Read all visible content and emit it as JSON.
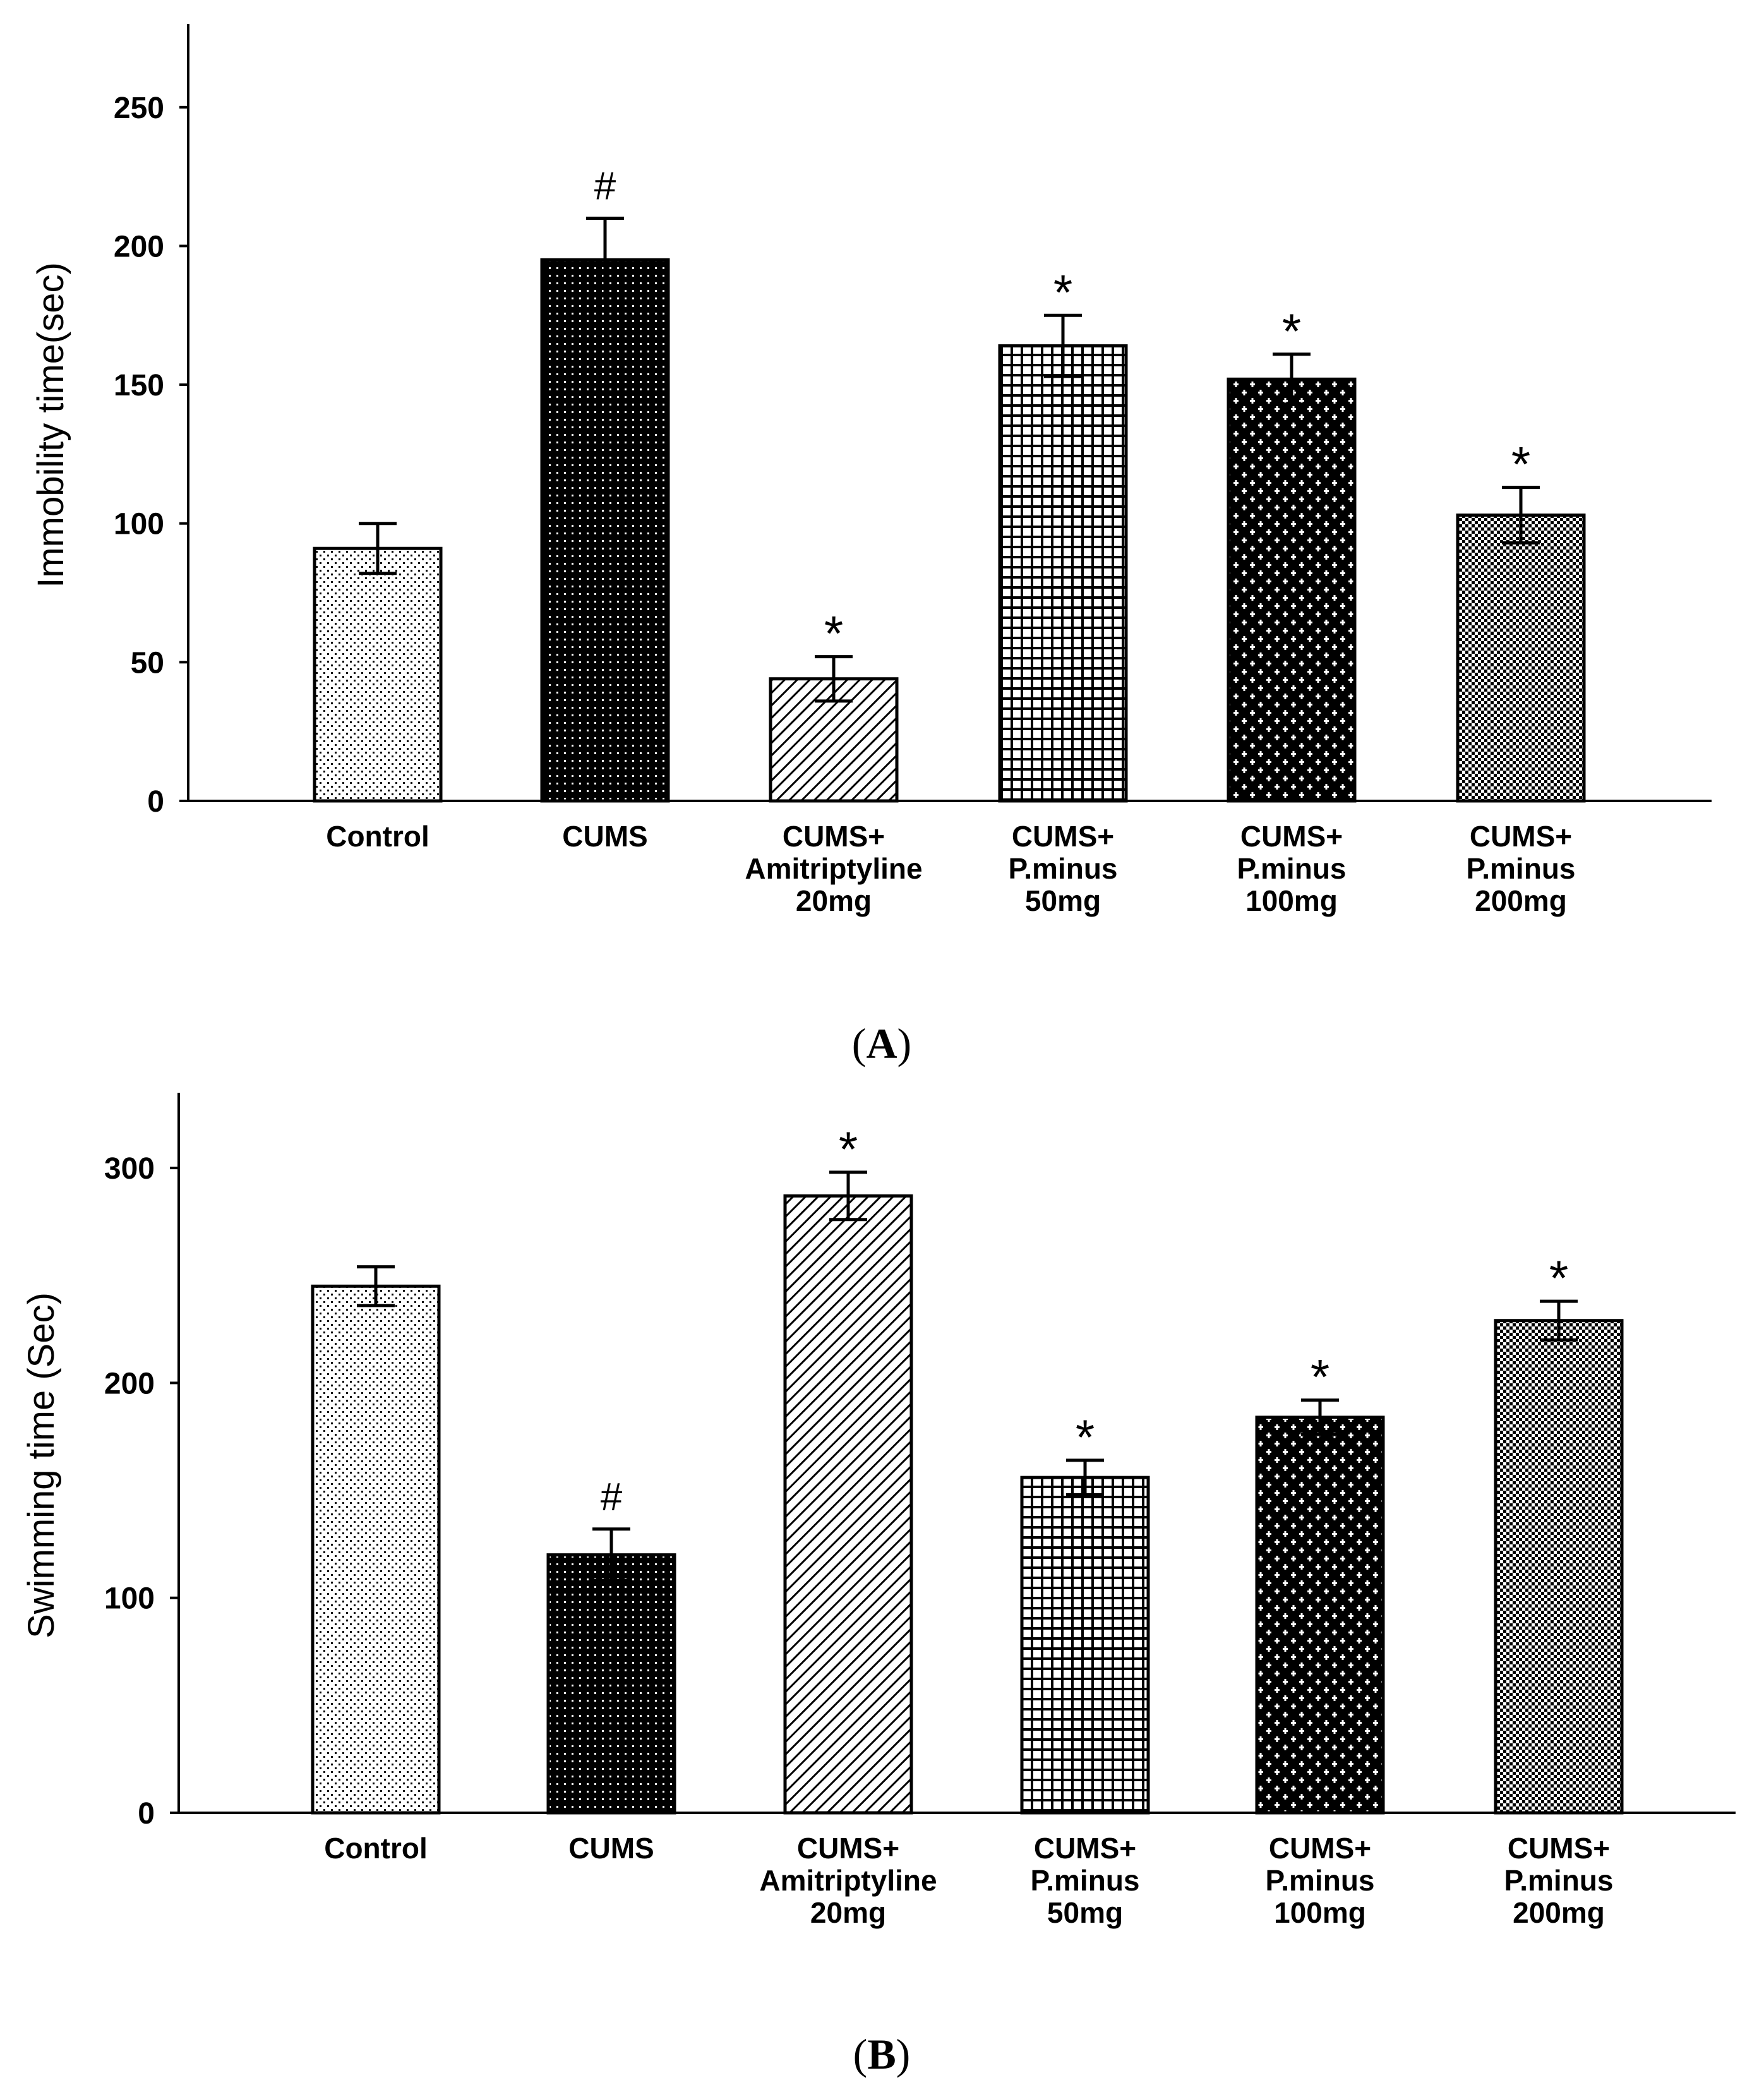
{
  "chart_data": [
    {
      "panel_label": "A",
      "type": "bar",
      "ylabel": "Immobility time(sec)",
      "ylim": [
        0,
        280
      ],
      "yticks": [
        0,
        50,
        100,
        150,
        200,
        250
      ],
      "categories": [
        {
          "lines": [
            "Control"
          ]
        },
        {
          "lines": [
            "CUMS"
          ]
        },
        {
          "lines": [
            "CUMS+",
            "Amitriptyline",
            "20mg"
          ]
        },
        {
          "lines": [
            "CUMS+",
            "P.minus",
            "50mg"
          ]
        },
        {
          "lines": [
            "CUMS+",
            "P.minus",
            "100mg"
          ]
        },
        {
          "lines": [
            "CUMS+",
            "P.minus",
            "200mg"
          ]
        }
      ],
      "values": [
        91,
        195,
        44,
        164,
        152,
        103
      ],
      "errors": [
        9,
        15,
        8,
        11,
        9,
        10
      ],
      "annotations": [
        "",
        "#",
        "*",
        "*",
        "*",
        "*"
      ],
      "patterns": [
        "dots-light",
        "dots-dark",
        "diagonal",
        "grid",
        "cross",
        "fine-check"
      ],
      "grid": false
    },
    {
      "panel_label": "B",
      "type": "bar",
      "ylabel": "Swimming time (Sec)",
      "ylim": [
        0,
        335
      ],
      "yticks": [
        0,
        100,
        200,
        300
      ],
      "categories": [
        {
          "lines": [
            "Control"
          ]
        },
        {
          "lines": [
            "CUMS"
          ]
        },
        {
          "lines": [
            "CUMS+",
            "Amitriptyline",
            "20mg"
          ]
        },
        {
          "lines": [
            "CUMS+",
            "P.minus",
            "50mg"
          ]
        },
        {
          "lines": [
            "CUMS+",
            "P.minus",
            "100mg"
          ]
        },
        {
          "lines": [
            "CUMS+",
            "P.minus",
            "200mg"
          ]
        }
      ],
      "values": [
        245,
        120,
        287,
        156,
        184,
        229
      ],
      "errors": [
        9,
        12,
        11,
        8,
        8,
        9
      ],
      "annotations": [
        "",
        "#",
        "*",
        "*",
        "*",
        "*"
      ],
      "patterns": [
        "dots-light",
        "dots-dark",
        "diagonal",
        "grid",
        "cross",
        "fine-check"
      ],
      "grid": false
    }
  ]
}
